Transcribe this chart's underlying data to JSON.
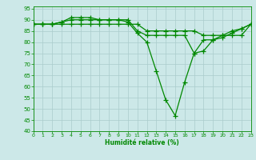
{
  "xlabel": "Humidité relative (%)",
  "xlim": [
    0,
    23
  ],
  "ylim": [
    40,
    96
  ],
  "yticks": [
    40,
    45,
    50,
    55,
    60,
    65,
    70,
    75,
    80,
    85,
    90,
    95
  ],
  "xticks": [
    0,
    1,
    2,
    3,
    4,
    5,
    6,
    7,
    8,
    9,
    10,
    11,
    12,
    13,
    14,
    15,
    16,
    17,
    18,
    19,
    20,
    21,
    22,
    23
  ],
  "bg_color": "#cce8e8",
  "grid_color": "#aacccc",
  "line_color": "#008800",
  "line_width": 0.9,
  "marker": "+",
  "marker_size": 4,
  "marker_lw": 0.9,
  "curves": [
    [
      88,
      88,
      88,
      89,
      90,
      90,
      90,
      90,
      90,
      90,
      89,
      84,
      80,
      67,
      54,
      47,
      62,
      75,
      76,
      81,
      83,
      85,
      86,
      88
    ],
    [
      88,
      88,
      88,
      89,
      91,
      91,
      91,
      90,
      90,
      90,
      90,
      85,
      83,
      83,
      83,
      83,
      83,
      75,
      81,
      81,
      82,
      84,
      86,
      88
    ],
    [
      88,
      88,
      88,
      88,
      88,
      88,
      88,
      88,
      88,
      88,
      88,
      88,
      85,
      85,
      85,
      85,
      85,
      85,
      83,
      83,
      83,
      83,
      83,
      88
    ]
  ]
}
